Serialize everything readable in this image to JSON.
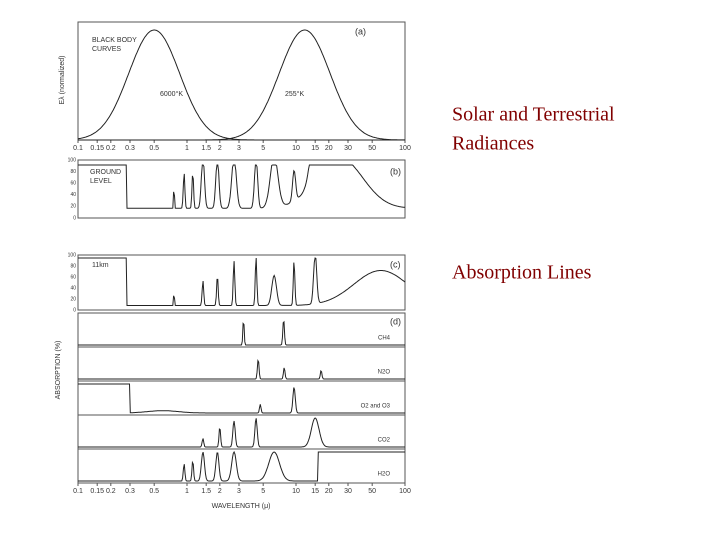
{
  "slide": {
    "heading_lines": [
      "Solar and Terrestrial",
      "Radiances"
    ],
    "caption": "Absorption Lines"
  },
  "figure": {
    "wavelength_ticks": [
      0.1,
      0.15,
      0.2,
      0.3,
      0.5,
      1,
      1.5,
      2,
      3,
      5,
      10,
      15,
      20,
      30,
      50,
      100
    ],
    "absorption_ticks": [
      100,
      80,
      60,
      40,
      20,
      0
    ],
    "x_label": "WAVELENGTH (μ)",
    "y_label_top": "Eλ (normalized)",
    "y_label_bottom": "ABSORPTION (%)",
    "panel_a": {
      "label": "(a)",
      "title_lines": [
        "BLACK BODY",
        "CURVES"
      ],
      "sun": "6000°K",
      "earth": "255°K"
    },
    "panel_b": {
      "label": "(b)",
      "title_lines": [
        "GROUND",
        "LEVEL"
      ]
    },
    "panel_c": {
      "label": "(c)",
      "title": "11km"
    },
    "panel_d": {
      "label": "(d)",
      "gases": [
        "CH4",
        "N2O",
        "O2 and O3",
        "CO2",
        "H2O"
      ]
    }
  }
}
